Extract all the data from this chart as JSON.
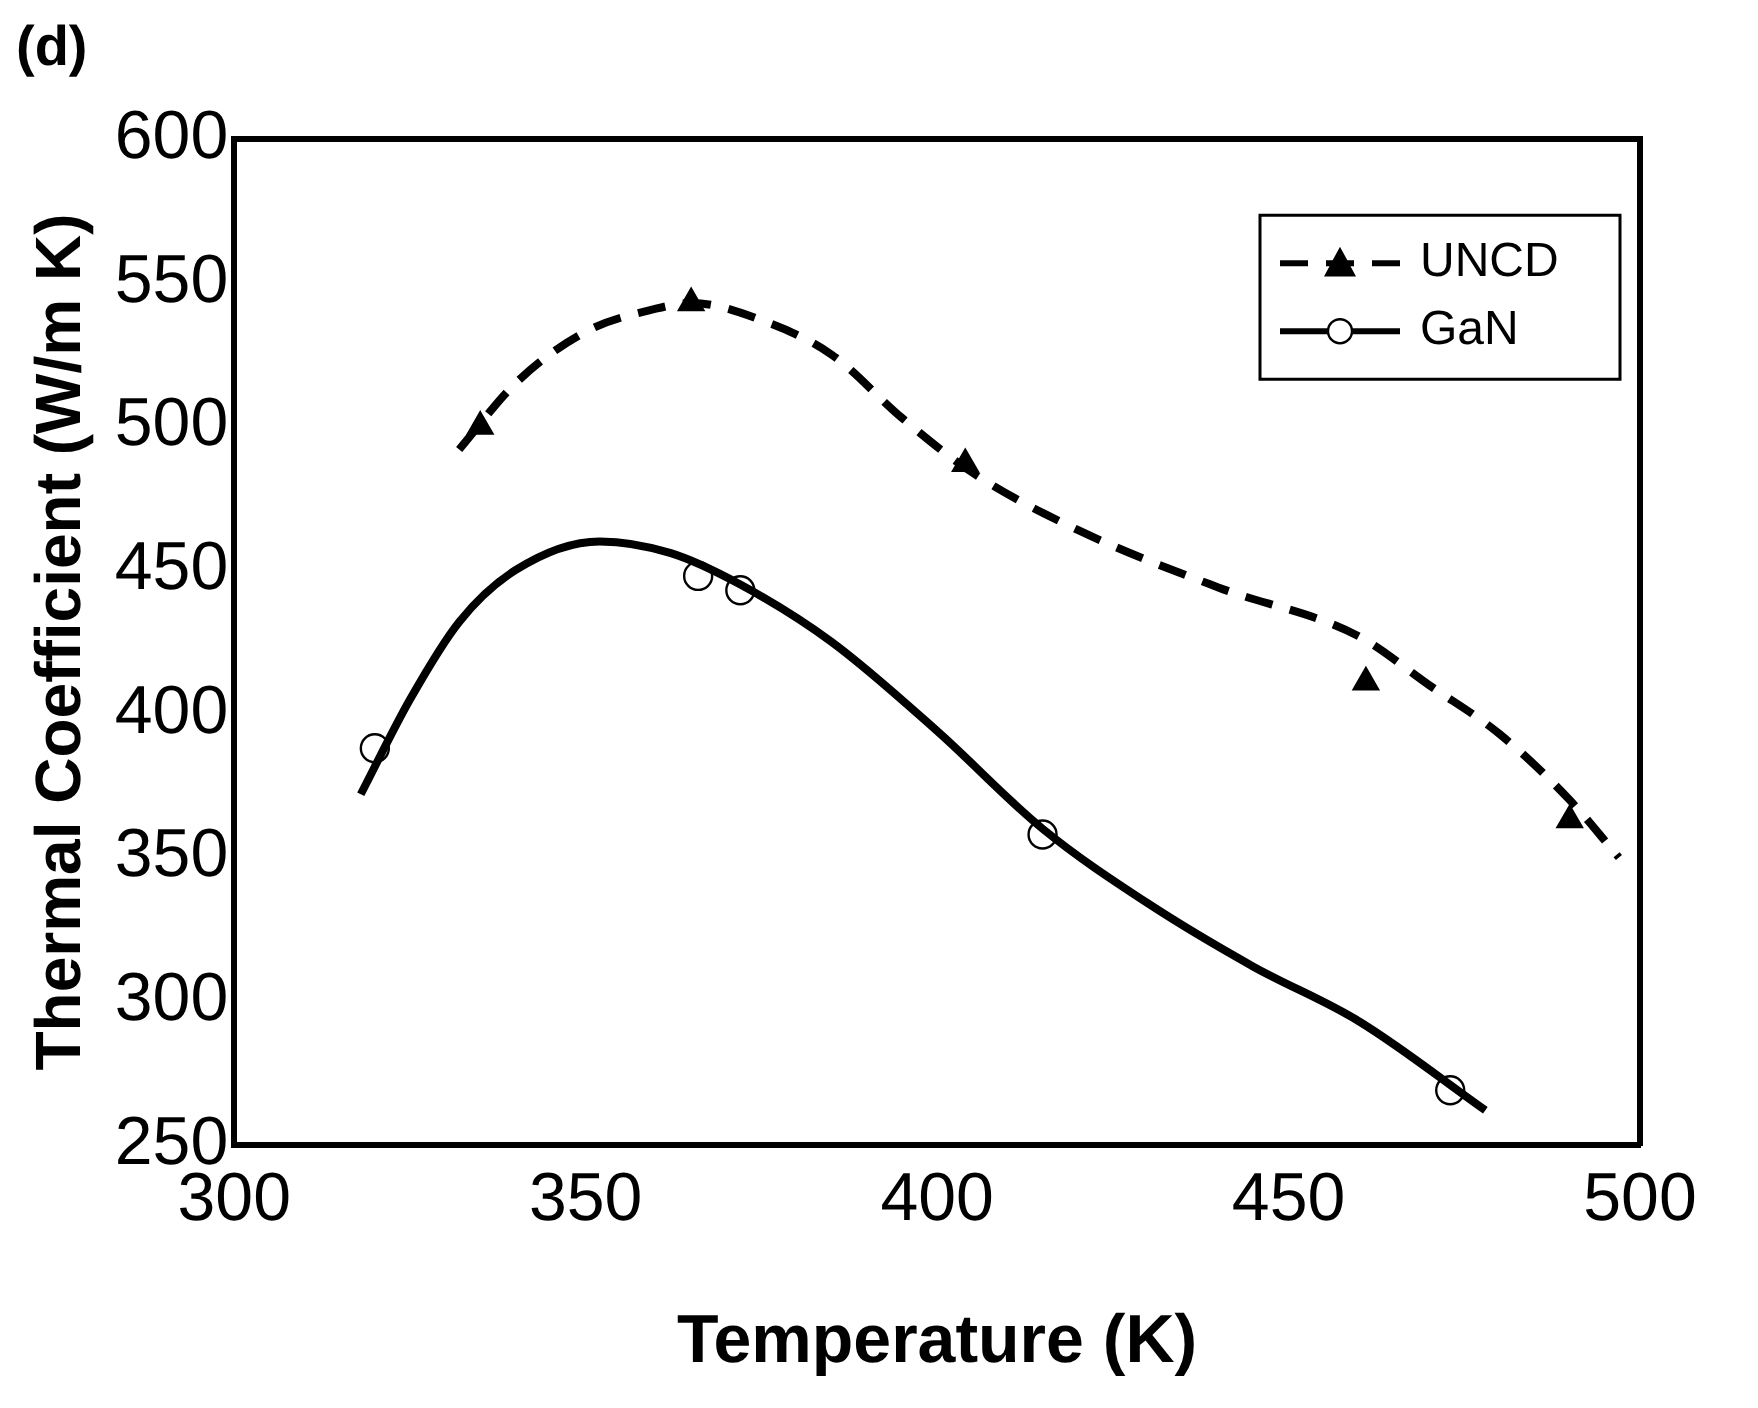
{
  "chart_data": {
    "type": "scatter",
    "title": "(d)",
    "xlabel": "Temperature (K)",
    "ylabel": "Thermal Coefficient (W/m K)",
    "xlim": [
      300,
      500
    ],
    "xticks": [
      300,
      350,
      400,
      450,
      500
    ],
    "ylim": [
      250,
      600
    ],
    "yticks": [
      250,
      300,
      350,
      400,
      450,
      500,
      550,
      600
    ],
    "grid": false,
    "legend": "top right",
    "series": [
      {
        "type": "line",
        "color": "#000000",
        "line_style": "dashed",
        "marker": "none",
        "x": [
          332,
          340,
          350,
          360,
          365,
          375,
          385,
          395,
          405,
          420,
          440,
          460,
          470,
          480,
          490,
          497
        ],
        "values": [
          492,
          515,
          533,
          541,
          543,
          537,
          525,
          503,
          484,
          464,
          444,
          427,
          410,
          393,
          370,
          350
        ]
      },
      {
        "type": "line",
        "color": "#000000",
        "line_style": "solid",
        "marker": "none",
        "x": [
          318,
          325,
          332,
          340,
          352,
          362,
          372,
          385,
          400,
          415,
          430,
          445,
          460,
          478
        ],
        "values": [
          372,
          405,
          432,
          450,
          460,
          456,
          445,
          425,
          394,
          360,
          334,
          312,
          293,
          262
        ]
      },
      {
        "type": "scatter",
        "name": "UNCD",
        "color": "#000000",
        "marker": "triangle",
        "line_style": "dashed",
        "x": [
          335,
          365,
          404,
          461,
          490
        ],
        "values": [
          500,
          543,
          487,
          411,
          363
        ]
      },
      {
        "type": "scatter",
        "name": "GaN",
        "color": "#000000",
        "marker": "circle",
        "line_style": "solid",
        "x": [
          320,
          366,
          372,
          415,
          473
        ],
        "values": [
          388,
          448,
          443,
          358,
          269
        ]
      }
    ]
  }
}
